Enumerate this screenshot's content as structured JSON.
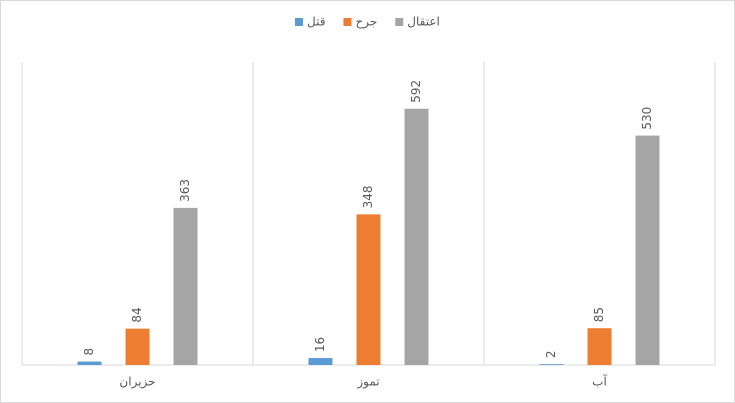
{
  "chart_data": {
    "type": "bar",
    "categories": [
      "حزيران",
      "تموز",
      "آب"
    ],
    "series": [
      {
        "name": "قتل",
        "color": "#5b9bd5",
        "values": [
          8,
          16,
          2
        ]
      },
      {
        "name": "جرح",
        "color": "#ed7d31",
        "values": [
          84,
          348,
          85
        ]
      },
      {
        "name": "اعتقال",
        "color": "#a5a5a5",
        "values": [
          363,
          592,
          530
        ]
      }
    ],
    "ylim": [
      0,
      700
    ],
    "legend": "top"
  }
}
